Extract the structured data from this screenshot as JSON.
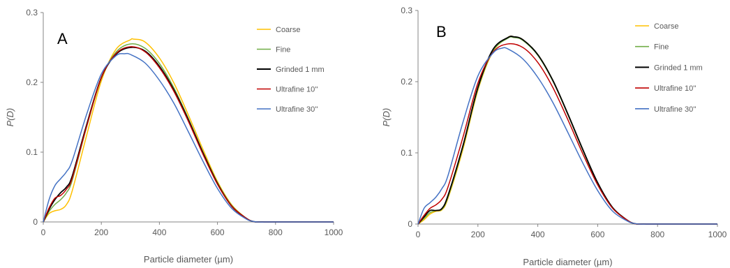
{
  "chart_data": [
    {
      "type": "line",
      "panel_letter": "A",
      "xlabel": "Particle diameter (µm)",
      "ylabel": "P(D)",
      "xlim": [
        0,
        1000
      ],
      "ylim": [
        0,
        0.3
      ],
      "xticks": [
        0,
        200,
        400,
        600,
        800,
        1000
      ],
      "yticks": [
        0,
        0.1,
        0.2,
        0.3
      ],
      "xtick_labels": [
        "0",
        "200",
        "400",
        "600",
        "800",
        "1000"
      ],
      "ytick_labels": [
        "0",
        "0.1",
        "0.2",
        "0.3"
      ],
      "grid": false,
      "legend_position": "top-right",
      "series": [
        {
          "name": "Coarse",
          "color": "#FFC000",
          "x": [
            0,
            20,
            40,
            60,
            80,
            100,
            150,
            200,
            250,
            300,
            310,
            350,
            400,
            450,
            500,
            550,
            600,
            650,
            700,
            720,
            740,
            800,
            1000
          ],
          "y": [
            0,
            0.012,
            0.016,
            0.018,
            0.025,
            0.045,
            0.125,
            0.202,
            0.247,
            0.261,
            0.262,
            0.258,
            0.235,
            0.199,
            0.153,
            0.104,
            0.058,
            0.024,
            0.005,
            0.001,
            0,
            0,
            0
          ]
        },
        {
          "name": "Fine",
          "color": "#70AD47",
          "x": [
            0,
            20,
            40,
            60,
            80,
            100,
            150,
            200,
            250,
            300,
            350,
            400,
            450,
            500,
            550,
            600,
            650,
            700,
            720,
            740,
            800,
            1000
          ],
          "y": [
            0,
            0.015,
            0.025,
            0.032,
            0.042,
            0.06,
            0.137,
            0.206,
            0.243,
            0.255,
            0.249,
            0.227,
            0.192,
            0.148,
            0.1,
            0.056,
            0.023,
            0.005,
            0.001,
            0,
            0,
            0
          ]
        },
        {
          "name": "Grinded 1 mm",
          "color": "#000000",
          "x": [
            0,
            20,
            40,
            60,
            80,
            100,
            150,
            200,
            250,
            300,
            350,
            400,
            450,
            500,
            550,
            600,
            650,
            700,
            720,
            740,
            800,
            1000
          ],
          "y": [
            0,
            0.018,
            0.032,
            0.042,
            0.05,
            0.066,
            0.14,
            0.207,
            0.24,
            0.25,
            0.245,
            0.223,
            0.189,
            0.146,
            0.099,
            0.055,
            0.022,
            0.005,
            0.001,
            0,
            0,
            0
          ]
        },
        {
          "name": "Ultrafine 10''",
          "color": "#C00000",
          "x": [
            0,
            20,
            40,
            60,
            80,
            100,
            150,
            200,
            250,
            300,
            350,
            400,
            450,
            500,
            550,
            600,
            650,
            700,
            720,
            740,
            800,
            1000
          ],
          "y": [
            0,
            0.02,
            0.034,
            0.038,
            0.047,
            0.063,
            0.138,
            0.207,
            0.241,
            0.251,
            0.244,
            0.221,
            0.187,
            0.144,
            0.097,
            0.054,
            0.022,
            0.005,
            0.001,
            0,
            0,
            0
          ]
        },
        {
          "name": "Ultrafine 30''",
          "color": "#4472C4",
          "x": [
            0,
            20,
            40,
            60,
            80,
            100,
            150,
            200,
            250,
            280,
            300,
            350,
            400,
            450,
            500,
            550,
            600,
            650,
            700,
            720,
            740,
            800,
            1000
          ],
          "y": [
            0,
            0.032,
            0.052,
            0.062,
            0.072,
            0.088,
            0.155,
            0.212,
            0.238,
            0.241,
            0.24,
            0.228,
            0.203,
            0.17,
            0.129,
            0.087,
            0.048,
            0.019,
            0.004,
            0.001,
            0,
            0,
            0
          ]
        }
      ]
    },
    {
      "type": "line",
      "panel_letter": "B",
      "xlabel": "Particle diameter (µm)",
      "ylabel": "P(D)",
      "xlim": [
        0,
        1000
      ],
      "ylim": [
        0,
        0.3
      ],
      "xticks": [
        0,
        200,
        400,
        600,
        800,
        1000
      ],
      "yticks": [
        0,
        0.1,
        0.2,
        0.3
      ],
      "xtick_labels": [
        "0",
        "200",
        "400",
        "600",
        "800",
        "1000"
      ],
      "ytick_labels": [
        "0",
        "0.1",
        "0.2",
        "0.3"
      ],
      "grid": false,
      "legend_position": "top-right",
      "series": [
        {
          "name": "Coarse",
          "color": "#FFC000",
          "x": [
            0,
            20,
            40,
            60,
            80,
            100,
            150,
            200,
            250,
            300,
            320,
            350,
            400,
            450,
            500,
            550,
            600,
            650,
            700,
            720,
            740,
            800,
            1000
          ],
          "y": [
            0,
            0.006,
            0.014,
            0.018,
            0.02,
            0.036,
            0.105,
            0.188,
            0.242,
            0.262,
            0.263,
            0.259,
            0.238,
            0.202,
            0.155,
            0.105,
            0.058,
            0.023,
            0.005,
            0.001,
            0,
            0,
            0
          ]
        },
        {
          "name": "Fine",
          "color": "#70AD47",
          "x": [
            0,
            20,
            40,
            60,
            80,
            100,
            150,
            200,
            250,
            300,
            320,
            350,
            400,
            450,
            500,
            550,
            600,
            650,
            700,
            720,
            740,
            800,
            1000
          ],
          "y": [
            0,
            0.008,
            0.016,
            0.019,
            0.021,
            0.038,
            0.108,
            0.19,
            0.243,
            0.261,
            0.262,
            0.258,
            0.237,
            0.201,
            0.154,
            0.104,
            0.057,
            0.023,
            0.005,
            0.001,
            0,
            0,
            0
          ]
        },
        {
          "name": "Grinded 1 mm",
          "color": "#000000",
          "x": [
            0,
            20,
            40,
            60,
            80,
            100,
            150,
            200,
            250,
            300,
            320,
            350,
            400,
            450,
            500,
            550,
            600,
            650,
            700,
            720,
            740,
            800,
            1000
          ],
          "y": [
            0,
            0.01,
            0.019,
            0.019,
            0.022,
            0.04,
            0.11,
            0.192,
            0.245,
            0.262,
            0.263,
            0.259,
            0.238,
            0.202,
            0.155,
            0.105,
            0.058,
            0.023,
            0.005,
            0.001,
            0,
            0,
            0
          ]
        },
        {
          "name": "Ultrafine 10''",
          "color": "#C00000",
          "x": [
            0,
            20,
            40,
            60,
            80,
            100,
            150,
            200,
            250,
            300,
            350,
            400,
            450,
            500,
            550,
            600,
            650,
            700,
            720,
            740,
            800,
            1000
          ],
          "y": [
            0,
            0.012,
            0.022,
            0.027,
            0.035,
            0.052,
            0.122,
            0.198,
            0.241,
            0.253,
            0.248,
            0.227,
            0.192,
            0.147,
            0.099,
            0.055,
            0.022,
            0.005,
            0.001,
            0,
            0,
            0
          ]
        },
        {
          "name": "Ultrafine 30''",
          "color": "#4472C4",
          "x": [
            0,
            20,
            40,
            60,
            80,
            100,
            150,
            200,
            250,
            280,
            300,
            350,
            400,
            450,
            500,
            550,
            600,
            650,
            700,
            720,
            740,
            800,
            1000
          ],
          "y": [
            0,
            0.022,
            0.03,
            0.038,
            0.05,
            0.068,
            0.143,
            0.208,
            0.24,
            0.247,
            0.246,
            0.232,
            0.206,
            0.171,
            0.129,
            0.086,
            0.047,
            0.018,
            0.004,
            0.001,
            0,
            0,
            0
          ]
        }
      ]
    }
  ]
}
